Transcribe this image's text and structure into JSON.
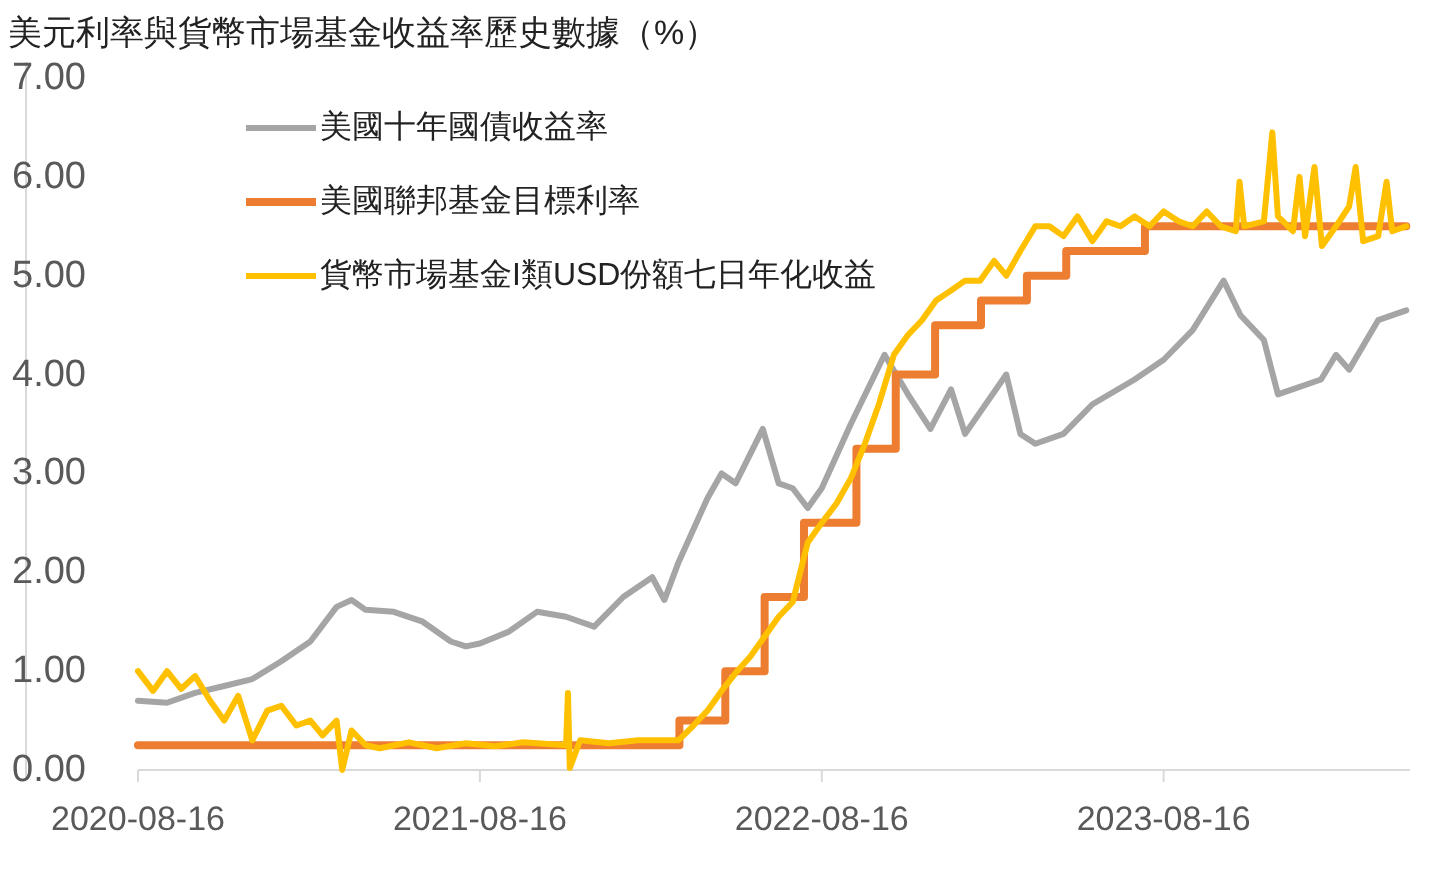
{
  "chart_data": {
    "type": "line",
    "title": "美元利率與貨幣市場基金收益率歷史數據（%）",
    "xlim": [
      "2020-08-16",
      "2024-05-05"
    ],
    "xticks": [
      "2020-08-16",
      "2021-08-16",
      "2022-08-16",
      "2023-08-16"
    ],
    "ylim": [
      0,
      7
    ],
    "yticks": [
      {
        "value": 0,
        "label": "0.00"
      },
      {
        "value": 1,
        "label": "1.00"
      },
      {
        "value": 2,
        "label": "2.00"
      },
      {
        "value": 3,
        "label": "3.00"
      },
      {
        "value": 4,
        "label": "4.00"
      },
      {
        "value": 5,
        "label": "5.00"
      },
      {
        "value": 6,
        "label": "6.00"
      },
      {
        "value": 7,
        "label": "7.00"
      }
    ],
    "grid": false,
    "legend": "top left",
    "series": [
      {
        "name": "美國十年國債收益率",
        "color": "#a5a5a5",
        "type": "line",
        "x": [
          "2020-08-16",
          "2020-09-16",
          "2020-10-16",
          "2020-11-16",
          "2020-12-16",
          "2021-01-16",
          "2021-02-16",
          "2021-03-16",
          "2021-04-01",
          "2021-04-16",
          "2021-05-16",
          "2021-06-16",
          "2021-07-16",
          "2021-08-01",
          "2021-08-16",
          "2021-09-16",
          "2021-10-16",
          "2021-11-16",
          "2021-12-16",
          "2022-01-16",
          "2022-02-16",
          "2022-03-01",
          "2022-03-16",
          "2022-04-16",
          "2022-05-01",
          "2022-05-16",
          "2022-06-14",
          "2022-07-01",
          "2022-07-16",
          "2022-08-01",
          "2022-08-16",
          "2022-09-16",
          "2022-10-22",
          "2022-11-16",
          "2022-12-10",
          "2023-01-01",
          "2023-01-16",
          "2023-03-01",
          "2023-03-16",
          "2023-04-01",
          "2023-05-01",
          "2023-06-01",
          "2023-07-16",
          "2023-08-16",
          "2023-09-16",
          "2023-10-19",
          "2023-11-06",
          "2023-12-01",
          "2023-12-16",
          "2024-01-31",
          "2024-02-16",
          "2024-03-01",
          "2024-04-01",
          "2024-05-01"
        ],
        "values": [
          0.7,
          0.68,
          0.78,
          0.85,
          0.92,
          1.1,
          1.3,
          1.65,
          1.72,
          1.62,
          1.6,
          1.5,
          1.3,
          1.25,
          1.28,
          1.4,
          1.6,
          1.55,
          1.45,
          1.75,
          1.95,
          1.72,
          2.1,
          2.75,
          3.0,
          2.9,
          3.45,
          2.9,
          2.85,
          2.65,
          2.85,
          3.5,
          4.2,
          3.8,
          3.45,
          3.85,
          3.4,
          4.0,
          3.4,
          3.3,
          3.4,
          3.7,
          3.95,
          4.15,
          4.45,
          4.95,
          4.6,
          4.35,
          3.8,
          3.95,
          4.2,
          4.05,
          4.55,
          4.65
        ]
      },
      {
        "name": "美國聯邦基金目標利率",
        "color": "#ed7d31",
        "type": "step",
        "x": [
          "2020-08-16",
          "2022-03-17",
          "2022-05-05",
          "2022-06-16",
          "2022-07-28",
          "2022-09-22",
          "2022-11-03",
          "2022-12-15",
          "2023-02-02",
          "2023-03-23",
          "2023-05-04",
          "2023-07-27",
          "2024-05-01"
        ],
        "values": [
          0.25,
          0.5,
          1.0,
          1.75,
          2.5,
          3.25,
          4.0,
          4.5,
          4.75,
          5.0,
          5.25,
          5.5,
          5.5
        ]
      },
      {
        "name": "貨幣市場基金I類USD份額七日年化收益",
        "color": "#ffc000",
        "type": "line",
        "x": [
          "2020-08-16",
          "2020-09-01",
          "2020-09-16",
          "2020-10-01",
          "2020-10-16",
          "2020-11-01",
          "2020-11-16",
          "2020-12-01",
          "2020-12-16",
          "2021-01-01",
          "2021-01-16",
          "2021-02-01",
          "2021-02-16",
          "2021-03-01",
          "2021-03-16",
          "2021-03-22",
          "2021-04-01",
          "2021-04-16",
          "2021-05-01",
          "2021-06-01",
          "2021-07-01",
          "2021-08-01",
          "2021-09-01",
          "2021-10-01",
          "2021-11-16",
          "2021-11-18",
          "2021-11-20",
          "2021-12-01",
          "2022-01-01",
          "2022-02-01",
          "2022-03-16",
          "2022-04-01",
          "2022-04-16",
          "2022-05-01",
          "2022-05-16",
          "2022-06-01",
          "2022-06-16",
          "2022-07-01",
          "2022-07-16",
          "2022-08-01",
          "2022-08-16",
          "2022-09-01",
          "2022-09-16",
          "2022-10-01",
          "2022-10-16",
          "2022-11-01",
          "2022-11-16",
          "2022-12-01",
          "2022-12-16",
          "2023-01-01",
          "2023-01-16",
          "2023-02-01",
          "2023-02-16",
          "2023-03-01",
          "2023-03-16",
          "2023-04-01",
          "2023-04-16",
          "2023-05-01",
          "2023-05-16",
          "2023-06-01",
          "2023-06-16",
          "2023-07-01",
          "2023-07-16",
          "2023-08-01",
          "2023-08-16",
          "2023-09-01",
          "2023-09-16",
          "2023-10-01",
          "2023-10-16",
          "2023-11-01",
          "2023-11-05",
          "2023-11-10",
          "2023-12-01",
          "2023-12-10",
          "2023-12-16",
          "2024-01-01",
          "2024-01-08",
          "2024-01-14",
          "2024-01-24",
          "2024-02-01",
          "2024-02-16",
          "2024-03-01",
          "2024-03-08",
          "2024-03-16",
          "2024-04-01",
          "2024-04-10",
          "2024-04-16",
          "2024-05-01"
        ],
        "values": [
          1.0,
          0.8,
          1.0,
          0.82,
          0.95,
          0.7,
          0.5,
          0.75,
          0.3,
          0.6,
          0.65,
          0.45,
          0.5,
          0.35,
          0.5,
          0.0,
          0.4,
          0.25,
          0.22,
          0.28,
          0.22,
          0.27,
          0.24,
          0.28,
          0.25,
          0.78,
          0.02,
          0.3,
          0.27,
          0.3,
          0.3,
          0.45,
          0.6,
          0.8,
          0.98,
          1.15,
          1.35,
          1.55,
          1.7,
          2.3,
          2.5,
          2.7,
          2.95,
          3.3,
          3.7,
          4.2,
          4.4,
          4.55,
          4.75,
          4.85,
          4.95,
          4.95,
          5.15,
          5.0,
          5.25,
          5.5,
          5.5,
          5.4,
          5.6,
          5.35,
          5.55,
          5.5,
          5.6,
          5.5,
          5.65,
          5.55,
          5.5,
          5.65,
          5.5,
          5.45,
          5.95,
          5.5,
          5.55,
          6.45,
          5.6,
          5.45,
          6.0,
          5.4,
          6.1,
          5.3,
          5.5,
          5.7,
          6.1,
          5.35,
          5.4,
          5.95,
          5.45,
          5.5
        ]
      }
    ]
  }
}
